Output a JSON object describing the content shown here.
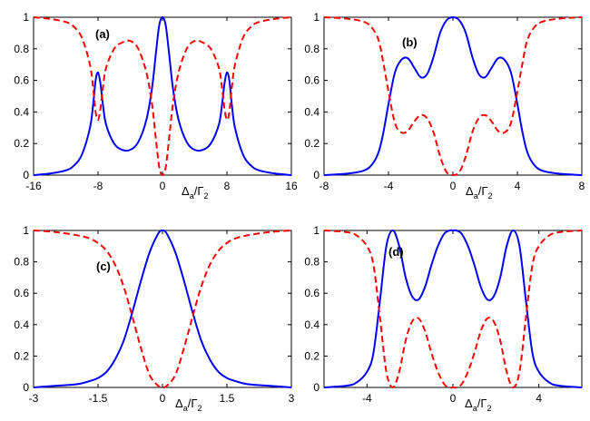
{
  "chart_data": [
    {
      "type": "line",
      "panel_label": "(a)",
      "xlabel": {
        "main": "Δ",
        "sub1": "a",
        "mid": "/Γ",
        "sub2": "2"
      },
      "xlim": [
        -16,
        16
      ],
      "ylim": [
        0,
        1
      ],
      "xticks": [
        -16,
        -8,
        0,
        8,
        16
      ],
      "xtick_labels": [
        "-16",
        "-8",
        "0",
        "8",
        "16"
      ],
      "yticks": [
        0,
        0.2,
        0.4,
        0.6,
        0.8,
        1
      ],
      "ytick_labels": [
        "0",
        "0.2",
        "0.4",
        "0.6",
        "0.8",
        "1"
      ],
      "grid": false,
      "series": [
        {
          "style": "solid",
          "color": "#0000ff",
          "x": [
            -16,
            -14,
            -12,
            -11,
            -10,
            -9,
            -8.6,
            -8.3,
            -8,
            -7.7,
            -7.4,
            -7,
            -6,
            -5,
            -4,
            -3,
            -2,
            -1.3,
            -0.8,
            -0.4,
            0,
            0.4,
            0.8,
            1.3,
            2,
            3,
            4,
            5,
            6,
            7,
            7.4,
            7.7,
            8,
            8.3,
            8.6,
            9,
            10,
            11,
            12,
            14,
            16
          ],
          "y": [
            0.0,
            0.01,
            0.03,
            0.06,
            0.13,
            0.3,
            0.45,
            0.6,
            0.65,
            0.58,
            0.45,
            0.32,
            0.2,
            0.16,
            0.16,
            0.21,
            0.35,
            0.55,
            0.78,
            0.95,
            1.0,
            0.95,
            0.78,
            0.55,
            0.35,
            0.21,
            0.16,
            0.16,
            0.2,
            0.32,
            0.45,
            0.58,
            0.65,
            0.6,
            0.45,
            0.3,
            0.13,
            0.06,
            0.03,
            0.01,
            0.0
          ]
        },
        {
          "style": "dashed",
          "color": "#ff0000",
          "x": [
            -16,
            -14,
            -12,
            -11,
            -10,
            -9,
            -8.6,
            -8.3,
            -8,
            -7.7,
            -7.4,
            -7,
            -6,
            -5,
            -4,
            -3,
            -2,
            -1.3,
            -0.8,
            -0.4,
            0,
            0.4,
            0.8,
            1.3,
            2,
            3,
            4,
            5,
            6,
            7,
            7.4,
            7.7,
            8,
            8.3,
            8.6,
            9,
            10,
            11,
            12,
            14,
            16
          ],
          "y": [
            1.0,
            0.99,
            0.97,
            0.94,
            0.87,
            0.7,
            0.55,
            0.4,
            0.35,
            0.42,
            0.55,
            0.68,
            0.8,
            0.84,
            0.85,
            0.8,
            0.65,
            0.45,
            0.22,
            0.05,
            0.0,
            0.05,
            0.22,
            0.45,
            0.65,
            0.8,
            0.85,
            0.84,
            0.8,
            0.68,
            0.55,
            0.42,
            0.35,
            0.4,
            0.55,
            0.7,
            0.87,
            0.94,
            0.97,
            0.99,
            1.0
          ]
        }
      ]
    },
    {
      "type": "line",
      "panel_label": "(b)",
      "xlabel": {
        "main": "Δ",
        "sub1": "a",
        "mid": "/Γ",
        "sub2": "2"
      },
      "xlim": [
        -8,
        8
      ],
      "ylim": [
        0,
        1
      ],
      "xticks": [
        -8,
        -4,
        0,
        4,
        8
      ],
      "xtick_labels": [
        "-8",
        "-4",
        "0",
        "4",
        "8"
      ],
      "yticks": [
        0,
        0.2,
        0.4,
        0.6,
        0.8,
        1
      ],
      "ytick_labels": [
        "0",
        "0.2",
        "0.4",
        "0.6",
        "0.8",
        "1"
      ],
      "grid": false,
      "series": [
        {
          "style": "solid",
          "color": "#0000ff",
          "x": [
            -8,
            -6.5,
            -5.5,
            -5,
            -4.6,
            -4.3,
            -4,
            -3.6,
            -3.2,
            -2.8,
            -2.4,
            -2,
            -1.6,
            -1.2,
            -0.8,
            -0.4,
            0,
            0.4,
            0.8,
            1.2,
            1.6,
            2,
            2.4,
            2.8,
            3.2,
            3.6,
            4,
            4.3,
            4.6,
            5,
            5.5,
            6.5,
            8
          ],
          "y": [
            0.0,
            0.01,
            0.03,
            0.07,
            0.15,
            0.28,
            0.45,
            0.65,
            0.73,
            0.74,
            0.68,
            0.62,
            0.64,
            0.75,
            0.9,
            0.98,
            1.0,
            0.98,
            0.9,
            0.75,
            0.64,
            0.62,
            0.68,
            0.74,
            0.73,
            0.65,
            0.45,
            0.28,
            0.15,
            0.07,
            0.03,
            0.01,
            0.0
          ]
        },
        {
          "style": "dashed",
          "color": "#ff0000",
          "x": [
            -8,
            -6.5,
            -5.5,
            -5,
            -4.6,
            -4.3,
            -4,
            -3.6,
            -3.2,
            -2.8,
            -2.4,
            -2,
            -1.6,
            -1.2,
            -0.8,
            -0.4,
            0,
            0.4,
            0.8,
            1.2,
            1.6,
            2,
            2.4,
            2.8,
            3.2,
            3.6,
            4,
            4.3,
            4.6,
            5,
            5.5,
            6.5,
            8
          ],
          "y": [
            1.0,
            0.99,
            0.97,
            0.93,
            0.85,
            0.7,
            0.53,
            0.33,
            0.27,
            0.28,
            0.34,
            0.38,
            0.36,
            0.27,
            0.12,
            0.02,
            0.0,
            0.02,
            0.12,
            0.27,
            0.36,
            0.38,
            0.34,
            0.28,
            0.27,
            0.33,
            0.53,
            0.7,
            0.85,
            0.93,
            0.97,
            0.99,
            1.0
          ]
        }
      ]
    },
    {
      "type": "line",
      "panel_label": "(c)",
      "xlabel": {
        "main": "Δ",
        "sub1": "a",
        "mid": "/Γ",
        "sub2": "2"
      },
      "xlim": [
        -3,
        3
      ],
      "ylim": [
        0,
        1
      ],
      "xticks": [
        -3,
        -1.5,
        0,
        1.5,
        3
      ],
      "xtick_labels": [
        "-3",
        "-1.5",
        "0",
        "1.5",
        "3"
      ],
      "yticks": [
        0,
        0.2,
        0.4,
        0.6,
        0.8,
        1
      ],
      "ytick_labels": [
        "0",
        "0.2",
        "0.4",
        "0.6",
        "0.8",
        "1"
      ],
      "grid": false,
      "series": [
        {
          "style": "solid",
          "color": "#0000ff",
          "x": [
            -3,
            -2.5,
            -2,
            -1.7,
            -1.5,
            -1.3,
            -1.1,
            -0.9,
            -0.7,
            -0.5,
            -0.3,
            -0.1,
            0,
            0.1,
            0.3,
            0.5,
            0.7,
            0.9,
            1.1,
            1.3,
            1.5,
            1.7,
            2,
            2.5,
            3
          ],
          "y": [
            0.0,
            0.01,
            0.02,
            0.04,
            0.06,
            0.1,
            0.18,
            0.3,
            0.48,
            0.68,
            0.86,
            0.98,
            1.0,
            0.98,
            0.86,
            0.68,
            0.48,
            0.3,
            0.18,
            0.1,
            0.06,
            0.04,
            0.02,
            0.01,
            0.0
          ]
        },
        {
          "style": "dashed",
          "color": "#ff0000",
          "x": [
            -3,
            -2.5,
            -2,
            -1.7,
            -1.5,
            -1.3,
            -1.1,
            -0.9,
            -0.7,
            -0.5,
            -0.3,
            -0.1,
            0,
            0.1,
            0.3,
            0.5,
            0.7,
            0.9,
            1.1,
            1.3,
            1.5,
            1.7,
            2,
            2.5,
            3
          ],
          "y": [
            1.0,
            0.99,
            0.97,
            0.95,
            0.92,
            0.87,
            0.78,
            0.64,
            0.45,
            0.25,
            0.08,
            0.01,
            0.0,
            0.01,
            0.08,
            0.25,
            0.45,
            0.64,
            0.78,
            0.87,
            0.92,
            0.95,
            0.97,
            0.99,
            1.0
          ]
        }
      ]
    },
    {
      "type": "line",
      "panel_label": "(d)",
      "xlabel": {
        "main": "Δ",
        "sub1": "a",
        "mid": "/Γ",
        "sub2": "2"
      },
      "xlim": [
        -6,
        6
      ],
      "ylim": [
        0,
        1
      ],
      "xticks": [
        -4,
        0,
        4
      ],
      "xtick_labels": [
        "-4",
        "0",
        "4"
      ],
      "yticks": [
        0,
        0.2,
        0.4,
        0.6,
        0.8,
        1
      ],
      "ytick_labels": [
        "0",
        "0.2",
        "0.4",
        "0.6",
        "0.8",
        "1"
      ],
      "grid": false,
      "series": [
        {
          "style": "solid",
          "color": "#0000ff",
          "x": [
            -6,
            -5,
            -4.5,
            -4,
            -3.7,
            -3.4,
            -3.1,
            -2.8,
            -2.5,
            -2.2,
            -1.9,
            -1.6,
            -1.3,
            -1,
            -0.7,
            -0.4,
            -0.15,
            0,
            0.15,
            0.4,
            0.7,
            1,
            1.3,
            1.6,
            1.9,
            2.2,
            2.5,
            2.8,
            3.1,
            3.4,
            3.7,
            4,
            4.5,
            5,
            6
          ],
          "y": [
            0.0,
            0.01,
            0.03,
            0.1,
            0.22,
            0.55,
            0.9,
            1.0,
            0.9,
            0.7,
            0.58,
            0.56,
            0.64,
            0.78,
            0.9,
            0.98,
            1.0,
            1.0,
            1.0,
            0.98,
            0.9,
            0.78,
            0.64,
            0.56,
            0.58,
            0.7,
            0.9,
            1.0,
            0.9,
            0.55,
            0.22,
            0.1,
            0.03,
            0.01,
            0.0
          ]
        },
        {
          "style": "dashed",
          "color": "#ff0000",
          "x": [
            -6,
            -5,
            -4.5,
            -4,
            -3.7,
            -3.4,
            -3.1,
            -2.8,
            -2.5,
            -2.2,
            -1.9,
            -1.6,
            -1.3,
            -1,
            -0.7,
            -0.4,
            -0.15,
            0,
            0.15,
            0.4,
            0.7,
            1,
            1.3,
            1.6,
            1.9,
            2.2,
            2.5,
            2.8,
            3.1,
            3.4,
            3.7,
            4,
            4.5,
            5,
            6
          ],
          "y": [
            1.0,
            0.99,
            0.97,
            0.9,
            0.78,
            0.45,
            0.1,
            0.0,
            0.1,
            0.3,
            0.42,
            0.44,
            0.36,
            0.22,
            0.1,
            0.02,
            0.0,
            0.0,
            0.0,
            0.02,
            0.1,
            0.22,
            0.36,
            0.44,
            0.42,
            0.3,
            0.1,
            0.0,
            0.1,
            0.45,
            0.78,
            0.9,
            0.97,
            0.99,
            1.0
          ]
        }
      ]
    }
  ]
}
